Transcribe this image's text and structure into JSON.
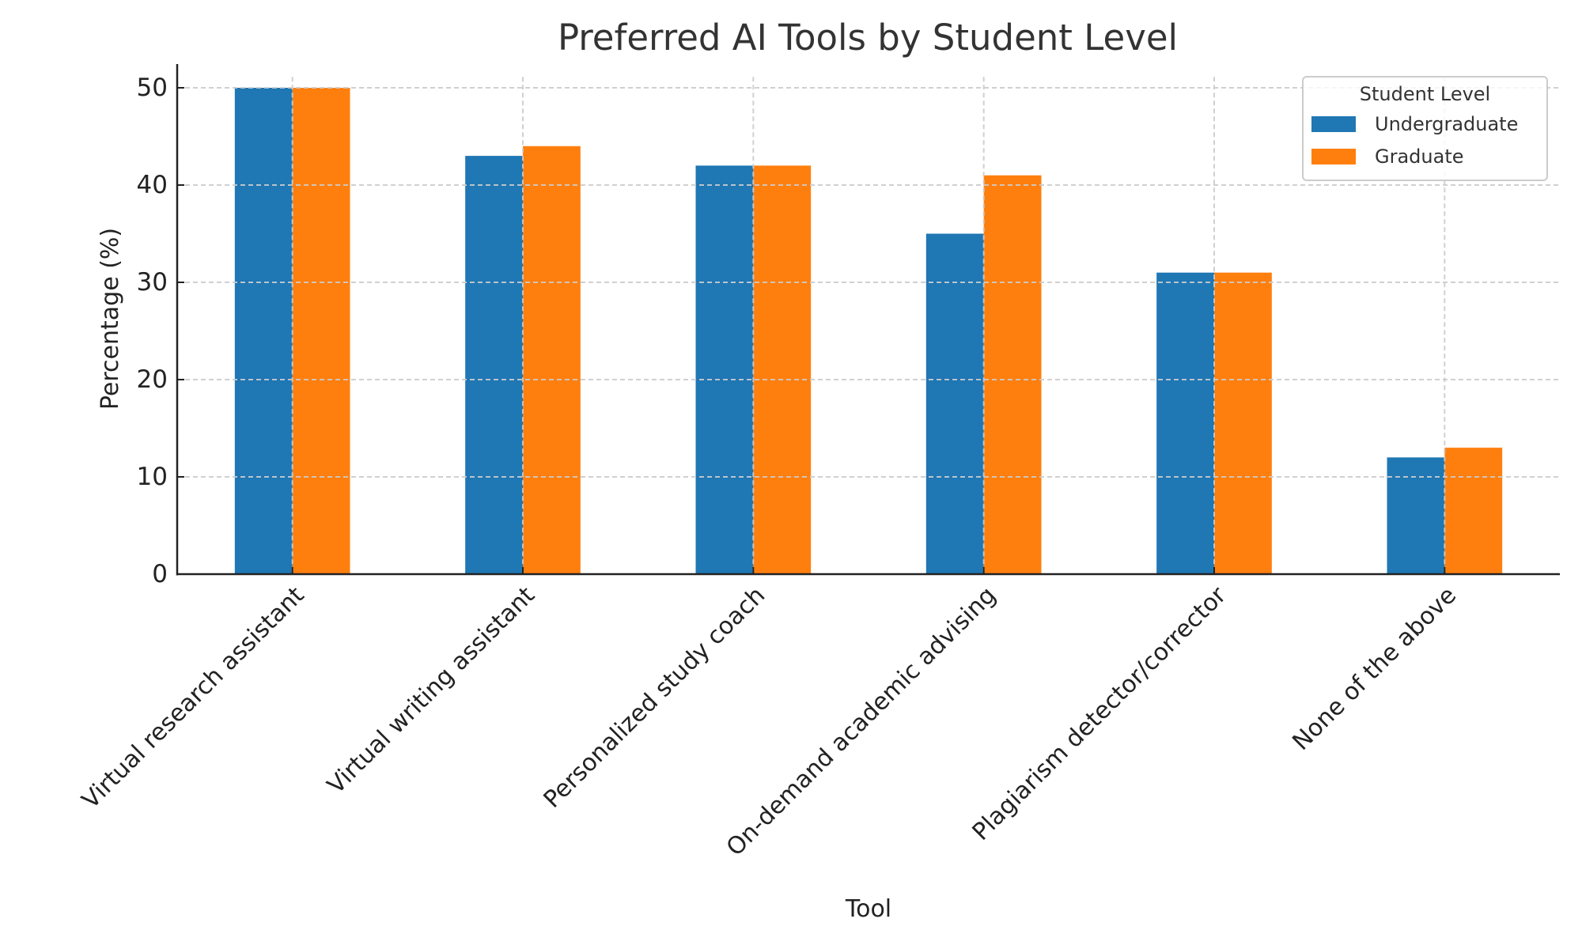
{
  "chart_data": {
    "type": "bar",
    "title": "Preferred AI Tools by Student Level",
    "xlabel": "Tool",
    "ylabel": "Percentage (%)",
    "categories": [
      "Virtual research assistant",
      "Virtual writing assistant",
      "Personalized study coach",
      "On-demand academic advising",
      "Plagiarism detector/corrector",
      "None of the above"
    ],
    "series": [
      {
        "name": "Undergraduate",
        "color": "#1f77b4",
        "values": [
          50,
          43,
          42,
          35,
          31,
          12
        ]
      },
      {
        "name": "Graduate",
        "color": "#ff7f0e",
        "values": [
          50,
          44,
          42,
          41,
          31,
          13
        ]
      }
    ],
    "ylim": [
      0,
      52.5
    ],
    "yticks": [
      0,
      10,
      20,
      30,
      40,
      50
    ],
    "grid": true,
    "grid_style": "dashed",
    "legend": {
      "title": "Student Level",
      "position": "upper right"
    },
    "xtick_rotation": 45
  },
  "colors": {
    "undergraduate": "#1f77b4",
    "graduate": "#ff7f0e",
    "grid": "#cccccc",
    "axis": "#222222",
    "title": "#333333"
  }
}
